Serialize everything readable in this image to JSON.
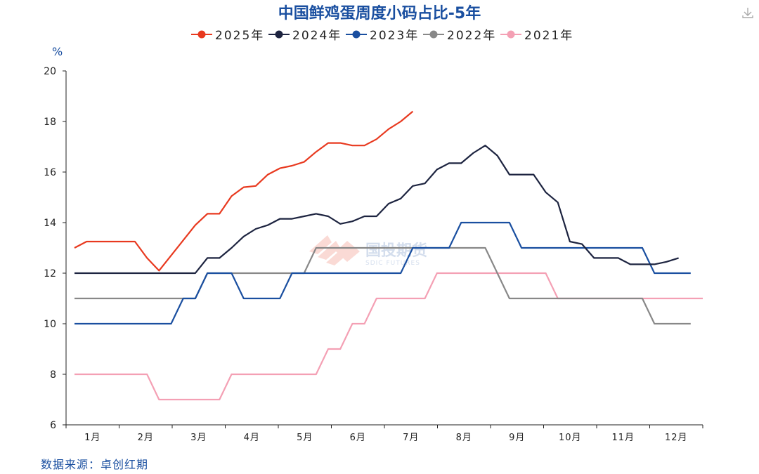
{
  "chart_data": {
    "type": "line",
    "title": "中国鲜鸡蛋周度小码占比-5年",
    "ylabel": "%",
    "ylim": [
      6,
      20
    ],
    "yticks": [
      6,
      8,
      10,
      12,
      14,
      16,
      18,
      20
    ],
    "xlim": [
      1,
      53
    ],
    "xtick_labels": [
      "1月",
      "2月",
      "3月",
      "4月",
      "5月",
      "6月",
      "7月",
      "8月",
      "9月",
      "10月",
      "11月",
      "12月"
    ],
    "legend_position": "top",
    "grid": false,
    "series": [
      {
        "name": "2025年",
        "color": "#e8391f",
        "x": [
          1,
          2,
          3,
          4,
          5,
          6,
          7,
          8,
          9,
          10,
          11,
          12,
          13,
          14,
          15,
          16,
          17,
          18,
          19,
          20,
          21,
          22,
          23,
          24,
          25,
          26,
          27,
          28,
          29,
          30
        ],
        "values": [
          13.0,
          13.25,
          13.25,
          13.25,
          13.25,
          13.25,
          12.6,
          12.1,
          12.7,
          13.3,
          13.9,
          14.35,
          14.35,
          15.05,
          15.4,
          15.45,
          15.9,
          16.15,
          16.25,
          16.4,
          16.8,
          17.15,
          17.15,
          17.05,
          17.05,
          17.3,
          17.7,
          18.0,
          18.4,
          null
        ]
      },
      {
        "name": "2024年",
        "color": "#1d2440",
        "x": [
          1,
          2,
          3,
          4,
          5,
          6,
          7,
          8,
          9,
          10,
          11,
          12,
          13,
          14,
          15,
          16,
          17,
          18,
          19,
          20,
          21,
          22,
          23,
          24,
          25,
          26,
          27,
          28,
          29,
          30,
          31,
          32,
          33,
          34,
          35,
          36,
          37,
          38,
          39,
          40,
          41,
          42,
          43,
          44,
          45,
          46,
          47,
          48,
          49,
          50,
          51,
          52
        ],
        "values": [
          12.0,
          12.0,
          12.0,
          12.0,
          12.0,
          12.0,
          12.0,
          12.0,
          12.0,
          12.0,
          12.0,
          12.6,
          12.6,
          13.0,
          13.45,
          13.75,
          13.9,
          14.15,
          14.15,
          14.25,
          14.35,
          14.25,
          13.95,
          14.05,
          14.25,
          14.25,
          14.75,
          14.95,
          15.45,
          15.55,
          16.1,
          16.35,
          16.35,
          16.75,
          17.05,
          16.65,
          15.9,
          15.9,
          15.9,
          15.2,
          14.8,
          13.25,
          13.15,
          12.6,
          12.6,
          12.6,
          12.35,
          12.35,
          12.35,
          12.45,
          12.6,
          null
        ]
      },
      {
        "name": "2023年",
        "color": "#1a4fa0",
        "x": [
          1,
          2,
          3,
          4,
          5,
          6,
          7,
          8,
          9,
          10,
          11,
          12,
          13,
          14,
          15,
          16,
          17,
          18,
          19,
          20,
          21,
          22,
          23,
          24,
          25,
          26,
          27,
          28,
          29,
          30,
          31,
          32,
          33,
          34,
          35,
          36,
          37,
          38,
          39,
          40,
          41,
          42,
          43,
          44,
          45,
          46,
          47,
          48,
          49,
          50,
          51,
          52
        ],
        "values": [
          10.0,
          10.0,
          10.0,
          10.0,
          10.0,
          10.0,
          10.0,
          10.0,
          10.0,
          11.0,
          11.0,
          12.0,
          12.0,
          12.0,
          11.0,
          11.0,
          11.0,
          11.0,
          12.0,
          12.0,
          12.0,
          12.0,
          12.0,
          12.0,
          12.0,
          12.0,
          12.0,
          12.0,
          13.0,
          13.0,
          13.0,
          13.0,
          14.0,
          14.0,
          14.0,
          14.0,
          14.0,
          13.0,
          13.0,
          13.0,
          13.0,
          13.0,
          13.0,
          13.0,
          13.0,
          13.0,
          13.0,
          13.0,
          12.0,
          12.0,
          12.0,
          12.0
        ]
      },
      {
        "name": "2022年",
        "color": "#888888",
        "x": [
          1,
          2,
          3,
          4,
          5,
          6,
          7,
          8,
          9,
          10,
          11,
          12,
          13,
          14,
          15,
          16,
          17,
          18,
          19,
          20,
          21,
          22,
          23,
          24,
          25,
          26,
          27,
          28,
          29,
          30,
          31,
          32,
          33,
          34,
          35,
          36,
          37,
          38,
          39,
          40,
          41,
          42,
          43,
          44,
          45,
          46,
          47,
          48,
          49,
          50,
          51,
          52
        ],
        "values": [
          11.0,
          11.0,
          11.0,
          11.0,
          11.0,
          11.0,
          11.0,
          11.0,
          11.0,
          11.0,
          11.0,
          12.0,
          12.0,
          12.0,
          12.0,
          12.0,
          12.0,
          12.0,
          12.0,
          12.0,
          13.0,
          13.0,
          13.0,
          13.0,
          13.0,
          13.0,
          13.0,
          13.0,
          13.0,
          13.0,
          13.0,
          13.0,
          13.0,
          13.0,
          13.0,
          12.0,
          11.0,
          11.0,
          11.0,
          11.0,
          11.0,
          11.0,
          11.0,
          11.0,
          11.0,
          11.0,
          11.0,
          11.0,
          10.0,
          10.0,
          10.0,
          10.0
        ]
      },
      {
        "name": "2021年",
        "color": "#f4a0b4",
        "x": [
          1,
          2,
          3,
          4,
          5,
          6,
          7,
          8,
          9,
          10,
          11,
          12,
          13,
          14,
          15,
          16,
          17,
          18,
          19,
          20,
          21,
          22,
          23,
          24,
          25,
          26,
          27,
          28,
          29,
          30,
          31,
          32,
          33,
          34,
          35,
          36,
          37,
          38,
          39,
          40,
          41,
          42,
          43,
          44,
          45,
          46,
          47,
          48,
          49,
          50,
          51,
          52,
          53
        ],
        "values": [
          8.0,
          8.0,
          8.0,
          8.0,
          8.0,
          8.0,
          8.0,
          7.0,
          7.0,
          7.0,
          7.0,
          7.0,
          7.0,
          8.0,
          8.0,
          8.0,
          8.0,
          8.0,
          8.0,
          8.0,
          8.0,
          9.0,
          9.0,
          10.0,
          10.0,
          11.0,
          11.0,
          11.0,
          11.0,
          11.0,
          12.0,
          12.0,
          12.0,
          12.0,
          12.0,
          12.0,
          12.0,
          12.0,
          12.0,
          12.0,
          11.0,
          11.0,
          11.0,
          11.0,
          11.0,
          11.0,
          11.0,
          11.0,
          11.0,
          11.0,
          11.0,
          11.0,
          11.0
        ]
      }
    ],
    "watermark": {
      "name": "国投期货",
      "subtitle": "SDIC FUTURES"
    }
  },
  "source": "数据来源：卓创红期",
  "download_icon": "download-icon"
}
